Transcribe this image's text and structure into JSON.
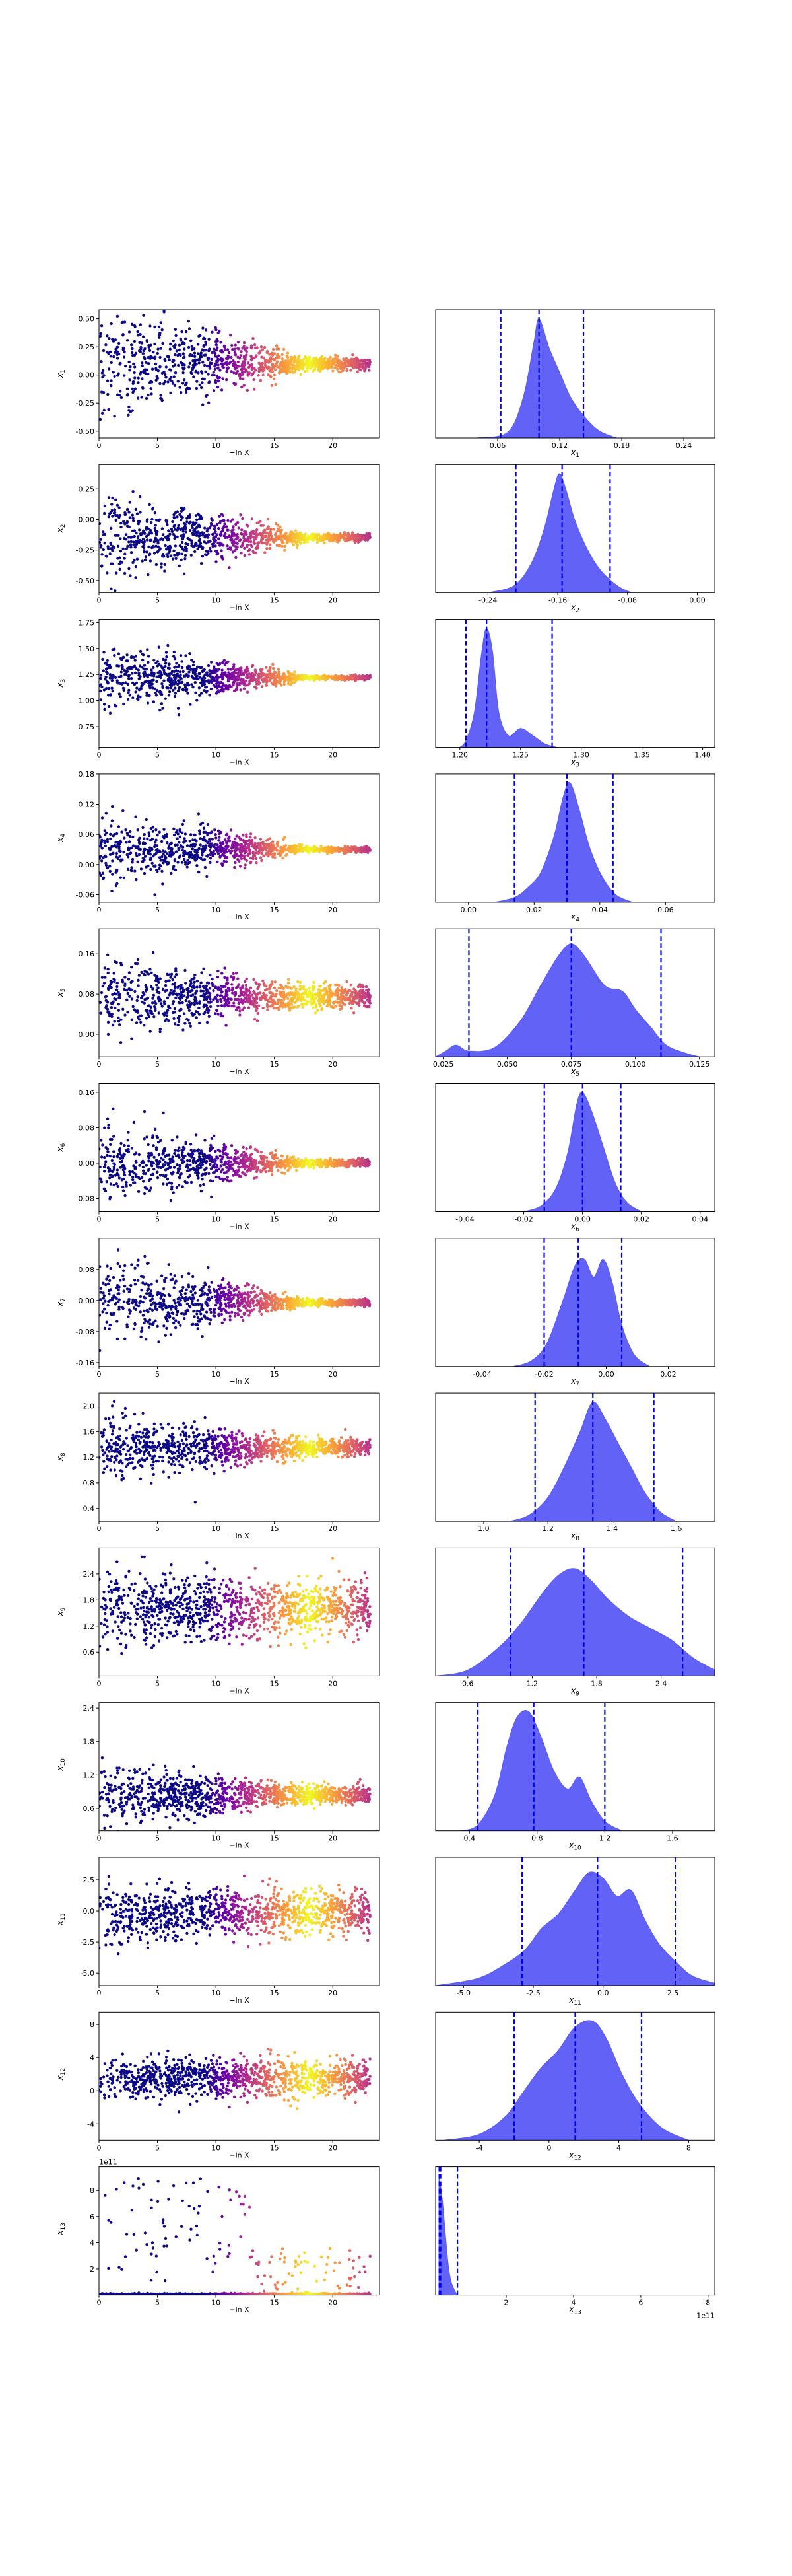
{
  "figure": {
    "colors": {
      "scatter_colormap": [
        "#0d0887",
        "#6a00a8",
        "#b12a90",
        "#e16462",
        "#fca636",
        "#f0f921"
      ],
      "histogram_fill": "#5a5af5",
      "quantile_line": "#0000ee",
      "axes": "#000000"
    },
    "scatter_xlabel": "−ln X",
    "scatter_xlim": [
      0,
      24
    ],
    "scatter_xticks": [
      "0",
      "5",
      "10",
      "15",
      "20"
    ],
    "colormap_name": "plasma"
  },
  "chart_data": [
    {
      "type": "scatter+histogram",
      "param": "x1",
      "label_base": "x",
      "label_sub": "1",
      "scatter": {
        "ylim": [
          -0.56,
          0.58
        ],
        "yticks": [
          "-0.50",
          "-0.25",
          "0.00",
          "0.25",
          "0.50"
        ],
        "center": 0.1,
        "spread_start": 0.5,
        "spread_end": 0.05
      },
      "hist": {
        "xlim": [
          0.0,
          0.27
        ],
        "xticks": [
          "0.06",
          "0.12",
          "0.18",
          "0.24"
        ],
        "quantiles": [
          0.063,
          0.1,
          0.143
        ],
        "density": [
          [
            0.04,
            0
          ],
          [
            0.07,
            0.05
          ],
          [
            0.085,
            0.35
          ],
          [
            0.095,
            0.8
          ],
          [
            0.1,
            1.0
          ],
          [
            0.11,
            0.75
          ],
          [
            0.12,
            0.55
          ],
          [
            0.13,
            0.35
          ],
          [
            0.14,
            0.22
          ],
          [
            0.15,
            0.12
          ],
          [
            0.16,
            0.05
          ],
          [
            0.175,
            0
          ]
        ]
      }
    },
    {
      "type": "scatter+histogram",
      "param": "x2",
      "label_base": "x",
      "label_sub": "2",
      "scatter": {
        "ylim": [
          -0.6,
          0.45
        ],
        "yticks": [
          "-0.50",
          "-0.25",
          "0.00",
          "0.25"
        ],
        "center": -0.15,
        "spread_start": 0.35,
        "spread_end": 0.03
      },
      "hist": {
        "xlim": [
          -0.3,
          0.02
        ],
        "xticks": [
          "-0.24",
          "-0.16",
          "-0.08",
          "0.00"
        ],
        "quantiles": [
          -0.208,
          -0.155,
          -0.1
        ],
        "density": [
          [
            -0.24,
            0
          ],
          [
            -0.21,
            0.06
          ],
          [
            -0.19,
            0.25
          ],
          [
            -0.175,
            0.55
          ],
          [
            -0.165,
            0.85
          ],
          [
            -0.158,
            1.0
          ],
          [
            -0.15,
            0.85
          ],
          [
            -0.14,
            0.6
          ],
          [
            -0.125,
            0.35
          ],
          [
            -0.11,
            0.18
          ],
          [
            -0.09,
            0.05
          ],
          [
            -0.075,
            0
          ]
        ]
      }
    },
    {
      "type": "scatter+histogram",
      "param": "x3",
      "label_base": "x",
      "label_sub": "3",
      "scatter": {
        "ylim": [
          0.55,
          1.78
        ],
        "yticks": [
          "0.75",
          "1.00",
          "1.25",
          "1.50",
          "1.75"
        ],
        "center": 1.22,
        "spread_start": 0.3,
        "spread_end": 0.02
      },
      "hist": {
        "xlim": [
          1.18,
          1.41
        ],
        "xticks": [
          "1.20",
          "1.25",
          "1.30",
          "1.35",
          "1.40"
        ],
        "quantiles": [
          1.205,
          1.222,
          1.276
        ],
        "density": [
          [
            1.2,
            0
          ],
          [
            1.205,
            0.06
          ],
          [
            1.212,
            0.3
          ],
          [
            1.218,
            0.8
          ],
          [
            1.222,
            1.0
          ],
          [
            1.227,
            0.8
          ],
          [
            1.232,
            0.3
          ],
          [
            1.24,
            0.1
          ],
          [
            1.25,
            0.16
          ],
          [
            1.26,
            0.1
          ],
          [
            1.27,
            0.03
          ],
          [
            1.28,
            0
          ]
        ]
      }
    },
    {
      "type": "scatter+histogram",
      "param": "x4",
      "label_base": "x",
      "label_sub": "4",
      "scatter": {
        "ylim": [
          -0.075,
          0.18
        ],
        "yticks": [
          "-0.06",
          "0.00",
          "0.06",
          "0.12",
          "0.18"
        ],
        "center": 0.03,
        "spread_start": 0.07,
        "spread_end": 0.005
      },
      "hist": {
        "xlim": [
          -0.01,
          0.075
        ],
        "xticks": [
          "0.00",
          "0.02",
          "0.04",
          "0.06"
        ],
        "quantiles": [
          0.014,
          0.03,
          0.044
        ],
        "density": [
          [
            0.008,
            0
          ],
          [
            0.014,
            0.04
          ],
          [
            0.018,
            0.12
          ],
          [
            0.022,
            0.25
          ],
          [
            0.026,
            0.55
          ],
          [
            0.029,
            0.9
          ],
          [
            0.031,
            1.0
          ],
          [
            0.034,
            0.75
          ],
          [
            0.037,
            0.45
          ],
          [
            0.041,
            0.2
          ],
          [
            0.045,
            0.06
          ],
          [
            0.05,
            0
          ]
        ]
      }
    },
    {
      "type": "scatter+histogram",
      "param": "x5",
      "label_base": "x",
      "label_sub": "5",
      "scatter": {
        "ylim": [
          -0.045,
          0.21
        ],
        "yticks": [
          "0.00",
          "0.08",
          "0.16"
        ],
        "center": 0.075,
        "spread_start": 0.07,
        "spread_end": 0.02
      },
      "hist": {
        "xlim": [
          0.022,
          0.131
        ],
        "xticks": [
          "0.025",
          "0.050",
          "0.075",
          "0.100",
          "0.125"
        ],
        "quantiles": [
          0.035,
          0.075,
          0.11
        ],
        "density": [
          [
            0.022,
            0
          ],
          [
            0.026,
            0.05
          ],
          [
            0.03,
            0.1
          ],
          [
            0.035,
            0.05
          ],
          [
            0.045,
            0.08
          ],
          [
            0.055,
            0.3
          ],
          [
            0.063,
            0.6
          ],
          [
            0.07,
            0.85
          ],
          [
            0.075,
            0.95
          ],
          [
            0.08,
            0.85
          ],
          [
            0.088,
            0.6
          ],
          [
            0.095,
            0.55
          ],
          [
            0.1,
            0.4
          ],
          [
            0.106,
            0.25
          ],
          [
            0.112,
            0.1
          ],
          [
            0.12,
            0.03
          ],
          [
            0.125,
            0
          ]
        ]
      }
    },
    {
      "type": "scatter+histogram",
      "param": "x6",
      "label_base": "x",
      "label_sub": "6",
      "scatter": {
        "ylim": [
          -0.11,
          0.18
        ],
        "yticks": [
          "-0.08",
          "0.00",
          "0.08",
          "0.16"
        ],
        "center": 0.0,
        "spread_start": 0.08,
        "spread_end": 0.008
      },
      "hist": {
        "xlim": [
          -0.05,
          0.045
        ],
        "xticks": [
          "-0.04",
          "-0.02",
          "0.00",
          "0.02",
          "0.04"
        ],
        "quantiles": [
          -0.013,
          0.0,
          0.013
        ],
        "density": [
          [
            -0.02,
            0
          ],
          [
            -0.014,
            0.05
          ],
          [
            -0.009,
            0.2
          ],
          [
            -0.005,
            0.5
          ],
          [
            -0.002,
            0.9
          ],
          [
            0.0,
            1.0
          ],
          [
            0.003,
            0.85
          ],
          [
            0.007,
            0.55
          ],
          [
            0.011,
            0.25
          ],
          [
            0.015,
            0.08
          ],
          [
            0.02,
            0
          ]
        ]
      }
    },
    {
      "type": "scatter+histogram",
      "param": "x7",
      "label_base": "x",
      "label_sub": "7",
      "scatter": {
        "ylim": [
          -0.17,
          0.16
        ],
        "yticks": [
          "-0.16",
          "-0.08",
          "0.00",
          "0.08"
        ],
        "center": -0.005,
        "spread_start": 0.1,
        "spread_end": 0.008
      },
      "hist": {
        "xlim": [
          -0.055,
          0.035
        ],
        "xticks": [
          "-0.04",
          "-0.02",
          "0.00",
          "0.02"
        ],
        "quantiles": [
          -0.02,
          -0.009,
          0.005
        ],
        "density": [
          [
            -0.03,
            0
          ],
          [
            -0.024,
            0.05
          ],
          [
            -0.019,
            0.2
          ],
          [
            -0.014,
            0.55
          ],
          [
            -0.01,
            0.85
          ],
          [
            -0.007,
            0.9
          ],
          [
            -0.004,
            0.75
          ],
          [
            -0.001,
            0.9
          ],
          [
            0.002,
            0.7
          ],
          [
            0.005,
            0.35
          ],
          [
            0.009,
            0.1
          ],
          [
            0.014,
            0
          ]
        ]
      }
    },
    {
      "type": "scatter+histogram",
      "param": "x8",
      "label_base": "x",
      "label_sub": "8",
      "scatter": {
        "ylim": [
          0.2,
          2.2
        ],
        "yticks": [
          "0.4",
          "0.8",
          "1.2",
          "1.6",
          "2.0"
        ],
        "center": 1.35,
        "spread_start": 0.5,
        "spread_end": 0.12
      },
      "hist": {
        "xlim": [
          0.85,
          1.72
        ],
        "xticks": [
          "1.0",
          "1.2",
          "1.4",
          "1.6"
        ],
        "quantiles": [
          1.16,
          1.34,
          1.53
        ],
        "density": [
          [
            1.08,
            0
          ],
          [
            1.14,
            0.05
          ],
          [
            1.2,
            0.2
          ],
          [
            1.25,
            0.45
          ],
          [
            1.3,
            0.75
          ],
          [
            1.34,
            1.0
          ],
          [
            1.38,
            0.85
          ],
          [
            1.42,
            0.65
          ],
          [
            1.46,
            0.45
          ],
          [
            1.5,
            0.25
          ],
          [
            1.55,
            0.08
          ],
          [
            1.6,
            0
          ]
        ]
      }
    },
    {
      "type": "scatter+histogram",
      "param": "x9",
      "label_base": "x",
      "label_sub": "9",
      "scatter": {
        "ylim": [
          0.05,
          3.0
        ],
        "yticks": [
          "0.6",
          "1.2",
          "1.8",
          "2.4"
        ],
        "center": 1.6,
        "spread_start": 0.8,
        "spread_end": 0.55
      },
      "hist": {
        "xlim": [
          0.3,
          2.9
        ],
        "xticks": [
          "0.6",
          "1.2",
          "1.8",
          "2.4"
        ],
        "quantiles": [
          1.0,
          1.68,
          2.6
        ],
        "density": [
          [
            0.3,
            0
          ],
          [
            0.6,
            0.05
          ],
          [
            0.9,
            0.25
          ],
          [
            1.1,
            0.45
          ],
          [
            1.3,
            0.7
          ],
          [
            1.45,
            0.85
          ],
          [
            1.6,
            0.9
          ],
          [
            1.75,
            0.8
          ],
          [
            1.9,
            0.65
          ],
          [
            2.1,
            0.5
          ],
          [
            2.3,
            0.4
          ],
          [
            2.5,
            0.3
          ],
          [
            2.7,
            0.15
          ],
          [
            2.9,
            0.05
          ]
        ]
      }
    },
    {
      "type": "scatter+histogram",
      "param": "x10",
      "label_base": "x",
      "label_sub": "10",
      "scatter": {
        "ylim": [
          0.2,
          2.5
        ],
        "yticks": [
          "0.6",
          "1.2",
          "1.8",
          "2.4"
        ],
        "center": 0.85,
        "spread_start": 0.5,
        "spread_end": 0.15
      },
      "hist": {
        "xlim": [
          0.2,
          1.85
        ],
        "xticks": [
          "0.4",
          "0.8",
          "1.2",
          "1.6"
        ],
        "quantiles": [
          0.45,
          0.78,
          1.2
        ],
        "density": [
          [
            0.35,
            0
          ],
          [
            0.45,
            0.05
          ],
          [
            0.55,
            0.3
          ],
          [
            0.62,
            0.7
          ],
          [
            0.68,
            0.95
          ],
          [
            0.75,
            1.0
          ],
          [
            0.82,
            0.8
          ],
          [
            0.9,
            0.5
          ],
          [
            0.98,
            0.35
          ],
          [
            1.05,
            0.45
          ],
          [
            1.12,
            0.25
          ],
          [
            1.2,
            0.08
          ],
          [
            1.3,
            0
          ]
        ]
      }
    },
    {
      "type": "scatter+histogram",
      "param": "x11",
      "label_base": "x",
      "label_sub": "11",
      "scatter": {
        "ylim": [
          -6.0,
          4.3
        ],
        "yticks": [
          "-5.0",
          "-2.5",
          "0.0",
          "2.5"
        ],
        "center": -0.2,
        "spread_start": 2.0,
        "spread_end": 1.6
      },
      "hist": {
        "xlim": [
          -6.0,
          4.0
        ],
        "xticks": [
          "-5.0",
          "-2.5",
          "0.0",
          "2.5"
        ],
        "quantiles": [
          -2.9,
          -0.2,
          2.6
        ],
        "density": [
          [
            -6,
            0
          ],
          [
            -4.5,
            0.06
          ],
          [
            -3.5,
            0.18
          ],
          [
            -2.8,
            0.3
          ],
          [
            -2.2,
            0.48
          ],
          [
            -1.6,
            0.6
          ],
          [
            -1.0,
            0.8
          ],
          [
            -0.5,
            0.95
          ],
          [
            0.0,
            0.9
          ],
          [
            0.5,
            0.75
          ],
          [
            1.0,
            0.8
          ],
          [
            1.5,
            0.55
          ],
          [
            2.0,
            0.35
          ],
          [
            2.6,
            0.2
          ],
          [
            3.2,
            0.08
          ],
          [
            4.0,
            0.02
          ]
        ]
      }
    },
    {
      "type": "scatter+histogram",
      "param": "x12",
      "label_base": "x",
      "label_sub": "12",
      "scatter": {
        "ylim": [
          -6.0,
          9.5
        ],
        "yticks": [
          "-4",
          "0",
          "4",
          "8"
        ],
        "center": 1.5,
        "spread_start": 2.3,
        "spread_end": 2.0
      },
      "hist": {
        "xlim": [
          -6.5,
          9.5
        ],
        "xticks": [
          "-4",
          "0",
          "4",
          "8"
        ],
        "quantiles": [
          -2.0,
          1.5,
          5.3
        ],
        "density": [
          [
            -6,
            0
          ],
          [
            -4,
            0.05
          ],
          [
            -2.5,
            0.2
          ],
          [
            -1.5,
            0.4
          ],
          [
            -0.5,
            0.6
          ],
          [
            0.5,
            0.75
          ],
          [
            1.5,
            0.95
          ],
          [
            2.5,
            1.0
          ],
          [
            3.3,
            0.85
          ],
          [
            4.2,
            0.55
          ],
          [
            5.2,
            0.3
          ],
          [
            6.5,
            0.1
          ],
          [
            8,
            0
          ]
        ]
      }
    },
    {
      "type": "scatter+histogram",
      "param": "x13",
      "label_base": "x",
      "label_sub": "13",
      "scatter": {
        "ylim": [
          0.0,
          980000000000.0
        ],
        "yticks": [
          "2",
          "4",
          "6",
          "8"
        ],
        "offset_text": "1e11",
        "center": 0.0,
        "spread_start": 0,
        "spread_end": 0
      },
      "hist": {
        "xlim": [
          -10000000000.0,
          820000000000.0
        ],
        "xticks": [
          "2",
          "4",
          "6",
          "8"
        ],
        "offset_text": "1e11",
        "quantiles": [
          1000000000.0,
          5000000000.0,
          55000000000.0
        ],
        "density": [
          [
            0.0,
            1.0
          ],
          [
            10000000000.0,
            0.8
          ],
          [
            30000000000.0,
            0.2
          ],
          [
            50000000000.0,
            0.02
          ],
          [
            60000000000.0,
            0
          ]
        ]
      }
    }
  ]
}
